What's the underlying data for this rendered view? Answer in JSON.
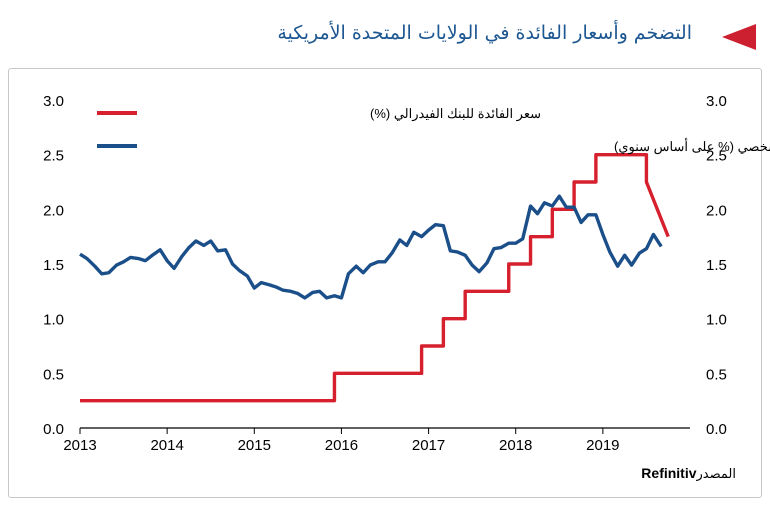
{
  "header": {
    "title": "التضخم وأسعار الفائدة في الولايات المتحدة الأمريكية"
  },
  "source": {
    "label": "المصدر",
    "name": "Refinitiv"
  },
  "colors": {
    "title": "#1d5791",
    "marker": "#cc1f2f",
    "fed_rate": "#d6202e",
    "core_pce": "#1b4f8a"
  },
  "chart_data": {
    "type": "line",
    "title": "",
    "xlabel": "",
    "ylabel": "",
    "x_ticks": [
      "2013",
      "2014",
      "2015",
      "2016",
      "2017",
      "2018",
      "2019"
    ],
    "y_ticks": [
      "0.0",
      "0.5",
      "1.0",
      "1.5",
      "2.0",
      "2.5",
      "3.0"
    ],
    "xlim": [
      2013.0,
      2020.0
    ],
    "ylim": [
      0,
      3
    ],
    "grid": false,
    "legend_position": "top-right",
    "series": [
      {
        "name": "سعر الفائدة للبنك الفيدرالي  (%)",
        "color": "#d6202e",
        "step": true,
        "x": [
          2013.0,
          2015.92,
          2016.92,
          2017.17,
          2017.42,
          2017.92,
          2018.17,
          2018.42,
          2018.67,
          2018.92,
          2019.5,
          2019.75
        ],
        "y": [
          0.25,
          0.5,
          0.75,
          1.0,
          1.25,
          1.5,
          1.75,
          2.0,
          2.25,
          2.5,
          2.25,
          1.75
        ]
      },
      {
        "name": "التضخم الأساسي في نفقات الاستهلاك الشخصي  (% على أساس سنوي)",
        "color": "#1b4f8a",
        "step": false,
        "x": [
          2013.0,
          2013.08,
          2013.17,
          2013.25,
          2013.33,
          2013.42,
          2013.5,
          2013.58,
          2013.67,
          2013.75,
          2013.83,
          2013.92,
          2014.0,
          2014.08,
          2014.17,
          2014.25,
          2014.33,
          2014.42,
          2014.5,
          2014.58,
          2014.67,
          2014.75,
          2014.83,
          2014.92,
          2015.0,
          2015.08,
          2015.17,
          2015.25,
          2015.33,
          2015.42,
          2015.5,
          2015.58,
          2015.67,
          2015.75,
          2015.83,
          2015.92,
          2016.0,
          2016.08,
          2016.17,
          2016.25,
          2016.33,
          2016.42,
          2016.5,
          2016.58,
          2016.67,
          2016.75,
          2016.83,
          2016.92,
          2017.0,
          2017.08,
          2017.17,
          2017.25,
          2017.33,
          2017.42,
          2017.5,
          2017.58,
          2017.67,
          2017.75,
          2017.83,
          2017.92,
          2018.0,
          2018.08,
          2018.17,
          2018.25,
          2018.33,
          2018.42,
          2018.5,
          2018.58,
          2018.67,
          2018.75,
          2018.83,
          2018.92,
          2019.0,
          2019.08,
          2019.17,
          2019.25,
          2019.33,
          2019.42,
          2019.5,
          2019.58,
          2019.67
        ],
        "y": [
          1.59,
          1.55,
          1.48,
          1.41,
          1.42,
          1.49,
          1.52,
          1.56,
          1.55,
          1.53,
          1.58,
          1.63,
          1.53,
          1.46,
          1.57,
          1.65,
          1.71,
          1.67,
          1.71,
          1.62,
          1.63,
          1.5,
          1.44,
          1.39,
          1.28,
          1.33,
          1.31,
          1.29,
          1.26,
          1.25,
          1.23,
          1.19,
          1.24,
          1.25,
          1.19,
          1.21,
          1.19,
          1.41,
          1.48,
          1.42,
          1.49,
          1.52,
          1.52,
          1.6,
          1.72,
          1.67,
          1.79,
          1.75,
          1.81,
          1.86,
          1.85,
          1.62,
          1.61,
          1.58,
          1.49,
          1.43,
          1.51,
          1.64,
          1.65,
          1.69,
          1.69,
          1.73,
          2.03,
          1.96,
          2.06,
          2.03,
          2.12,
          2.02,
          2.02,
          1.88,
          1.95,
          1.95,
          1.77,
          1.61,
          1.48,
          1.58,
          1.49,
          1.6,
          1.64,
          1.77,
          1.66
        ]
      }
    ]
  }
}
